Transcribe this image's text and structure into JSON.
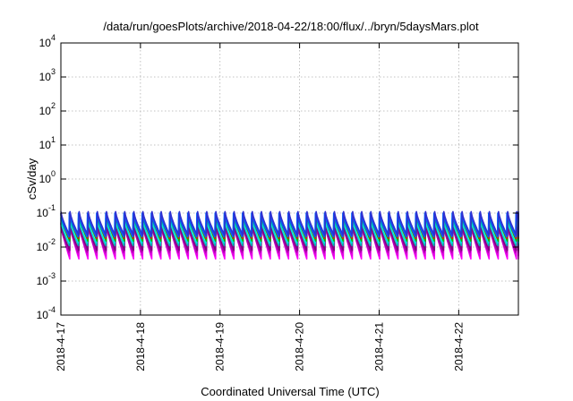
{
  "chart_data": {
    "type": "line",
    "title": "/data/run/goesPlots/archive/2018-04-22/18:00/flux/../bryn/5daysMars.plot",
    "xlabel": "Coordinated Universal Time (UTC)",
    "ylabel": "cSv/day",
    "yscale": "log",
    "ylim": [
      0.0001,
      10000
    ],
    "y_ticks": [
      {
        "base": "10",
        "exp": "-4"
      },
      {
        "base": "10",
        "exp": "-3"
      },
      {
        "base": "10",
        "exp": "-2"
      },
      {
        "base": "10",
        "exp": "-1"
      },
      {
        "base": "10",
        "exp": "0"
      },
      {
        "base": "10",
        "exp": "1"
      },
      {
        "base": "10",
        "exp": "2"
      },
      {
        "base": "10",
        "exp": "3"
      },
      {
        "base": "10",
        "exp": "4"
      }
    ],
    "x_ticks": [
      "2018-4-17",
      "2018-4-18",
      "2018-4-19",
      "2018-4-20",
      "2018-4-21",
      "2018-4-22"
    ],
    "xlim": [
      "2018-04-17T00:00",
      "2018-04-22T18:00"
    ],
    "grid": true,
    "sawtooth_period_hours": 2.75,
    "series": [
      {
        "color": "#ff00ff",
        "peak": 0.06,
        "trough": 0.0045
      },
      {
        "color": "#e000e0",
        "peak": 0.055,
        "trough": 0.0055
      },
      {
        "color": "#b000b0",
        "peak": 0.05,
        "trough": 0.007
      },
      {
        "color": "#800080",
        "peak": 0.05,
        "trough": 0.008
      },
      {
        "color": "#00b0b0",
        "peak": 0.075,
        "trough": 0.011
      },
      {
        "color": "#00e0e0",
        "peak": 0.07,
        "trough": 0.013
      },
      {
        "color": "#00c000",
        "peak": 0.09,
        "trough": 0.015
      },
      {
        "color": "#ff0000",
        "peak": 0.1,
        "trough": 0.018
      },
      {
        "color": "#0060ff",
        "peak": 0.1,
        "trough": 0.02
      },
      {
        "color": "#3030d0",
        "peak": 0.11,
        "trough": 0.022
      }
    ]
  }
}
